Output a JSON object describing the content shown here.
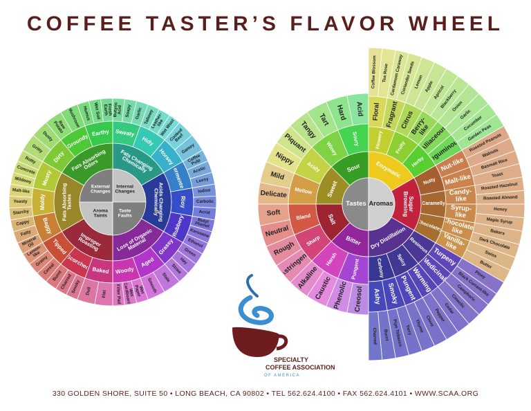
{
  "title": "COFFEE TASTER’S FLAVOR WHEEL",
  "left_wheel": {
    "center": [
      "Internal Changes",
      "Taste Faults",
      "Aroma Taints",
      "External Changes"
    ],
    "groups": [
      {
        "label": "Fats Changing Chemically",
        "children": [
          {
            "label": "Sweaty",
            "children": [
              "Butyric Acid",
              "Soapy",
              "Garlic"
            ]
          },
          {
            "label": "Hidy",
            "children": [
              "Tallowy",
              "Leather-like",
              "Wet Wool"
            ]
          },
          {
            "label": "Horsey",
            "children": [
              "Cooked Beef",
              "Gamey"
            ]
          }
        ]
      },
      {
        "label": "Acids Changing Chemically",
        "children": [
          {
            "label": "Fermented",
            "children": [
              "Coffee Pulp",
              "Acetic",
              "Leesy"
            ]
          },
          {
            "label": "Rioy",
            "children": [
              "Iodine",
              "Carbolic",
              "Acrid"
            ]
          },
          {
            "label": "Rubbery",
            "children": [
              "Butyl Phenol",
              "Kerosene",
              "Ethanol"
            ]
          }
        ]
      },
      {
        "label": "Loss of Organic Material",
        "children": [
          {
            "label": "Grassy",
            "children": [
              "Green",
              "Hay",
              "Straw"
            ]
          },
          {
            "label": "Aged",
            "children": [
              "Stale",
              "Smooth"
            ]
          },
          {
            "label": "Woody",
            "children": [
              "Wet Paper",
              "Wet Cardboard",
              "Filter Pad"
            ]
          }
        ]
      },
      {
        "label": "Improper Roasting",
        "children": [
          {
            "label": "Baked",
            "children": [
              "Flat",
              "Dull"
            ]
          },
          {
            "label": "Scorched",
            "children": [
              "Smoky",
              "Charred",
              "Burnt"
            ]
          },
          {
            "label": "Tipped",
            "children": [
              "Cereal",
              "Grainy",
              "Lemon-like"
            ]
          }
        ]
      },
      {
        "label": "Fats Absorbing Tastes",
        "children": [
          {
            "label": "Baggy",
            "children": [
              "Mineral Oil",
              "Fatty",
              "Cappy"
            ]
          },
          {
            "label": "Moldy",
            "children": [
              "Starchy",
              "Yeasty",
              "Malt-like"
            ]
          },
          {
            "label": "Musty",
            "children": [
              "Mildewy",
              "Concrete",
              "Rotty"
            ]
          }
        ]
      },
      {
        "label": "Fats Absorbing Odors",
        "children": [
          {
            "label": "Dirty",
            "children": [
              "Gritty",
              "Dusty"
            ]
          },
          {
            "label": "Groundy",
            "children": [
              "Raw Potato",
              "Mushroom"
            ]
          },
          {
            "label": "Earthy",
            "children": [
              "Humus",
              "Wet Soil",
              "Fresh Earth"
            ]
          }
        ]
      }
    ]
  },
  "right_wheel": {
    "tastes": {
      "label": "Tastes",
      "groups": [
        {
          "label": "Sour",
          "children": [
            {
              "label": "Soury",
              "children": [
                "Acid",
                "Hard"
              ]
            },
            {
              "label": "Winey",
              "children": [
                "Tart",
                "Tangy"
              ]
            }
          ]
        },
        {
          "label": "Sweet",
          "children": [
            {
              "label": "Acidy",
              "children": [
                "Piquant",
                "Nippy"
              ]
            },
            {
              "label": "Mellow",
              "children": [
                "Mild",
                "Delicate"
              ]
            }
          ]
        },
        {
          "label": "Salt",
          "children": [
            {
              "label": "Bland",
              "children": [
                "Soft",
                "Neutral"
              ]
            },
            {
              "label": "Sharp",
              "children": [
                "Rough",
                "Astringent"
              ]
            }
          ]
        },
        {
          "label": "Bitter",
          "children": [
            {
              "label": "Harsh",
              "children": [
                "Alkaline",
                "Caustic"
              ]
            },
            {
              "label": "Pungent",
              "children": [
                "Phenolic",
                "Creosol"
              ]
            }
          ]
        }
      ]
    },
    "aromas": {
      "label": "Aromas",
      "groups": [
        {
          "label": "Enzymatic",
          "children": [
            {
              "label": "Flowery",
              "children": [
                {
                  "label": "Floral",
                  "children": [
                    "Coffee Blossom",
                    "Tea Rose"
                  ]
                },
                {
                  "label": "Fragrant",
                  "children": [
                    "Cardamom Caraway",
                    "Coriander Seeds"
                  ]
                }
              ]
            },
            {
              "label": "Fruity",
              "children": [
                {
                  "label": "Citrus",
                  "children": [
                    "Lemon",
                    "Apple"
                  ]
                },
                {
                  "label": "Berry-like",
                  "children": [
                    "Apricot",
                    "Blackberry"
                  ]
                }
              ]
            },
            {
              "label": "Herby",
              "children": [
                {
                  "label": "Alliaceous",
                  "children": [
                    "Onion",
                    "Garlic"
                  ]
                },
                {
                  "label": "Leguminous",
                  "children": [
                    "Cucumber",
                    "Garden Peas"
                  ]
                }
              ]
            }
          ]
        },
        {
          "label": "Sugar Browning",
          "children": [
            {
              "label": "Nutty",
              "children": [
                {
                  "label": "Nut-like",
                  "children": [
                    "Roasted Peanuts",
                    "Walnuts"
                  ]
                },
                {
                  "label": "Malt-like",
                  "children": [
                    "Basmati Rice",
                    "Toast"
                  ]
                }
              ]
            },
            {
              "label": "Caramelly",
              "children": [
                {
                  "label": "Candy-like",
                  "children": [
                    "Roasted Hazelnut",
                    "Roasted Almond"
                  ]
                },
                {
                  "label": "Syrup-like",
                  "children": [
                    "Honey",
                    "Maple Syrup"
                  ]
                }
              ]
            },
            {
              "label": "Chocolatey",
              "children": [
                {
                  "label": "Chocolate-like",
                  "children": [
                    "Bakers",
                    "Dark Chocolate"
                  ]
                },
                {
                  "label": "Vanilla-like",
                  "children": [
                    "Swiss",
                    "Butter"
                  ]
                }
              ]
            }
          ]
        },
        {
          "label": "Dry Distillation",
          "children": [
            {
              "label": "Resinous",
              "children": [
                {
                  "label": "Turpeny",
                  "children": [
                    "Piney",
                    "Black Currant-like"
                  ]
                },
                {
                  "label": "Medicinal",
                  "children": [
                    "Camphoric",
                    "Cineolic"
                  ]
                }
              ]
            },
            {
              "label": "Spicy",
              "children": [
                {
                  "label": "Warming",
                  "children": [
                    "Cedar",
                    "Pepper"
                  ]
                },
                {
                  "label": "Pungent",
                  "children": [
                    "Clove",
                    "Thyme"
                  ]
                }
              ]
            },
            {
              "label": "Carbony",
              "children": [
                {
                  "label": "Smoky",
                  "children": [
                    "Tarry",
                    "Pipe Tobacco"
                  ]
                },
                {
                  "label": "Ashy",
                  "children": [
                    "Burnt",
                    "Charred"
                  ]
                }
              ]
            }
          ]
        }
      ]
    }
  },
  "logo": {
    "line1": "SPECIALTY",
    "line2": "COFFEE ASSOCIATION",
    "line3": "OF AMERICA"
  },
  "footer": "330 GOLDEN SHORE, SUITE 50  • LONG BEACH, CA 90802  • TEL 562.624.4100  • FAX 562.624.4101  • WWW.SCAA.ORG"
}
